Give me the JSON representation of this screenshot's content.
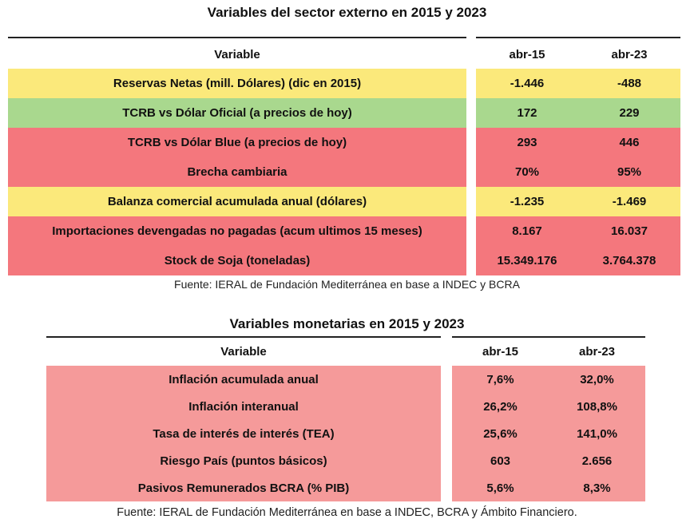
{
  "table1": {
    "title": "Variables del sector externo en 2015 y 2023",
    "headers": [
      "Variable",
      "abr-15",
      "abr-23"
    ],
    "rows": [
      {
        "variable": "Reservas Netas (mill. Dólares) (dic en 2015)",
        "abr15": "-1.446",
        "abr23": "-488",
        "color": "#fbe97b"
      },
      {
        "variable": "TCRB vs Dólar Oficial (a precios de hoy)",
        "abr15": "172",
        "abr23": "229",
        "color": "#a9d88e"
      },
      {
        "variable": "TCRB vs Dólar Blue (a precios de hoy)",
        "abr15": "293",
        "abr23": "446",
        "color": "#f4777d"
      },
      {
        "variable": "Brecha cambiaria",
        "abr15": "70%",
        "abr23": "95%",
        "color": "#f4777d"
      },
      {
        "variable": "Balanza comercial acumulada anual (dólares)",
        "abr15": "-1.235",
        "abr23": "-1.469",
        "color": "#fbe97b"
      },
      {
        "variable": "Importaciones devengadas no pagadas (acum ultimos 15 meses)",
        "abr15": "8.167",
        "abr23": "16.037",
        "color": "#f4777d"
      },
      {
        "variable": "Stock de Soja (toneladas)",
        "abr15": "15.349.176",
        "abr23": "3.764.378",
        "color": "#f4777d"
      }
    ],
    "source": "Fuente: IERAL de Fundación Mediterránea en base a INDEC y BCRA"
  },
  "table2": {
    "title": "Variables monetarias en 2015 y 2023",
    "headers": [
      "Variable",
      "abr-15",
      "abr-23"
    ],
    "rows": [
      {
        "variable": "Inflación acumulada anual",
        "abr15": "7,6%",
        "abr23": "32,0%",
        "color": "#f59a9a"
      },
      {
        "variable": "Inflación interanual",
        "abr15": "26,2%",
        "abr23": "108,8%",
        "color": "#f59a9a"
      },
      {
        "variable": "Tasa de interés de interés (TEA)",
        "abr15": "25,6%",
        "abr23": "141,0%",
        "color": "#f59a9a"
      },
      {
        "variable": "Riesgo País (puntos básicos)",
        "abr15": "603",
        "abr23": "2.656",
        "color": "#f59a9a"
      },
      {
        "variable": "Pasivos Remunerados BCRA (% PIB)",
        "abr15": "5,6%",
        "abr23": "8,3%",
        "color": "#f59a9a"
      }
    ],
    "source": "Fuente: IERAL de Fundación Mediterránea en base a INDEC, BCRA y Ámbito Financiero."
  }
}
